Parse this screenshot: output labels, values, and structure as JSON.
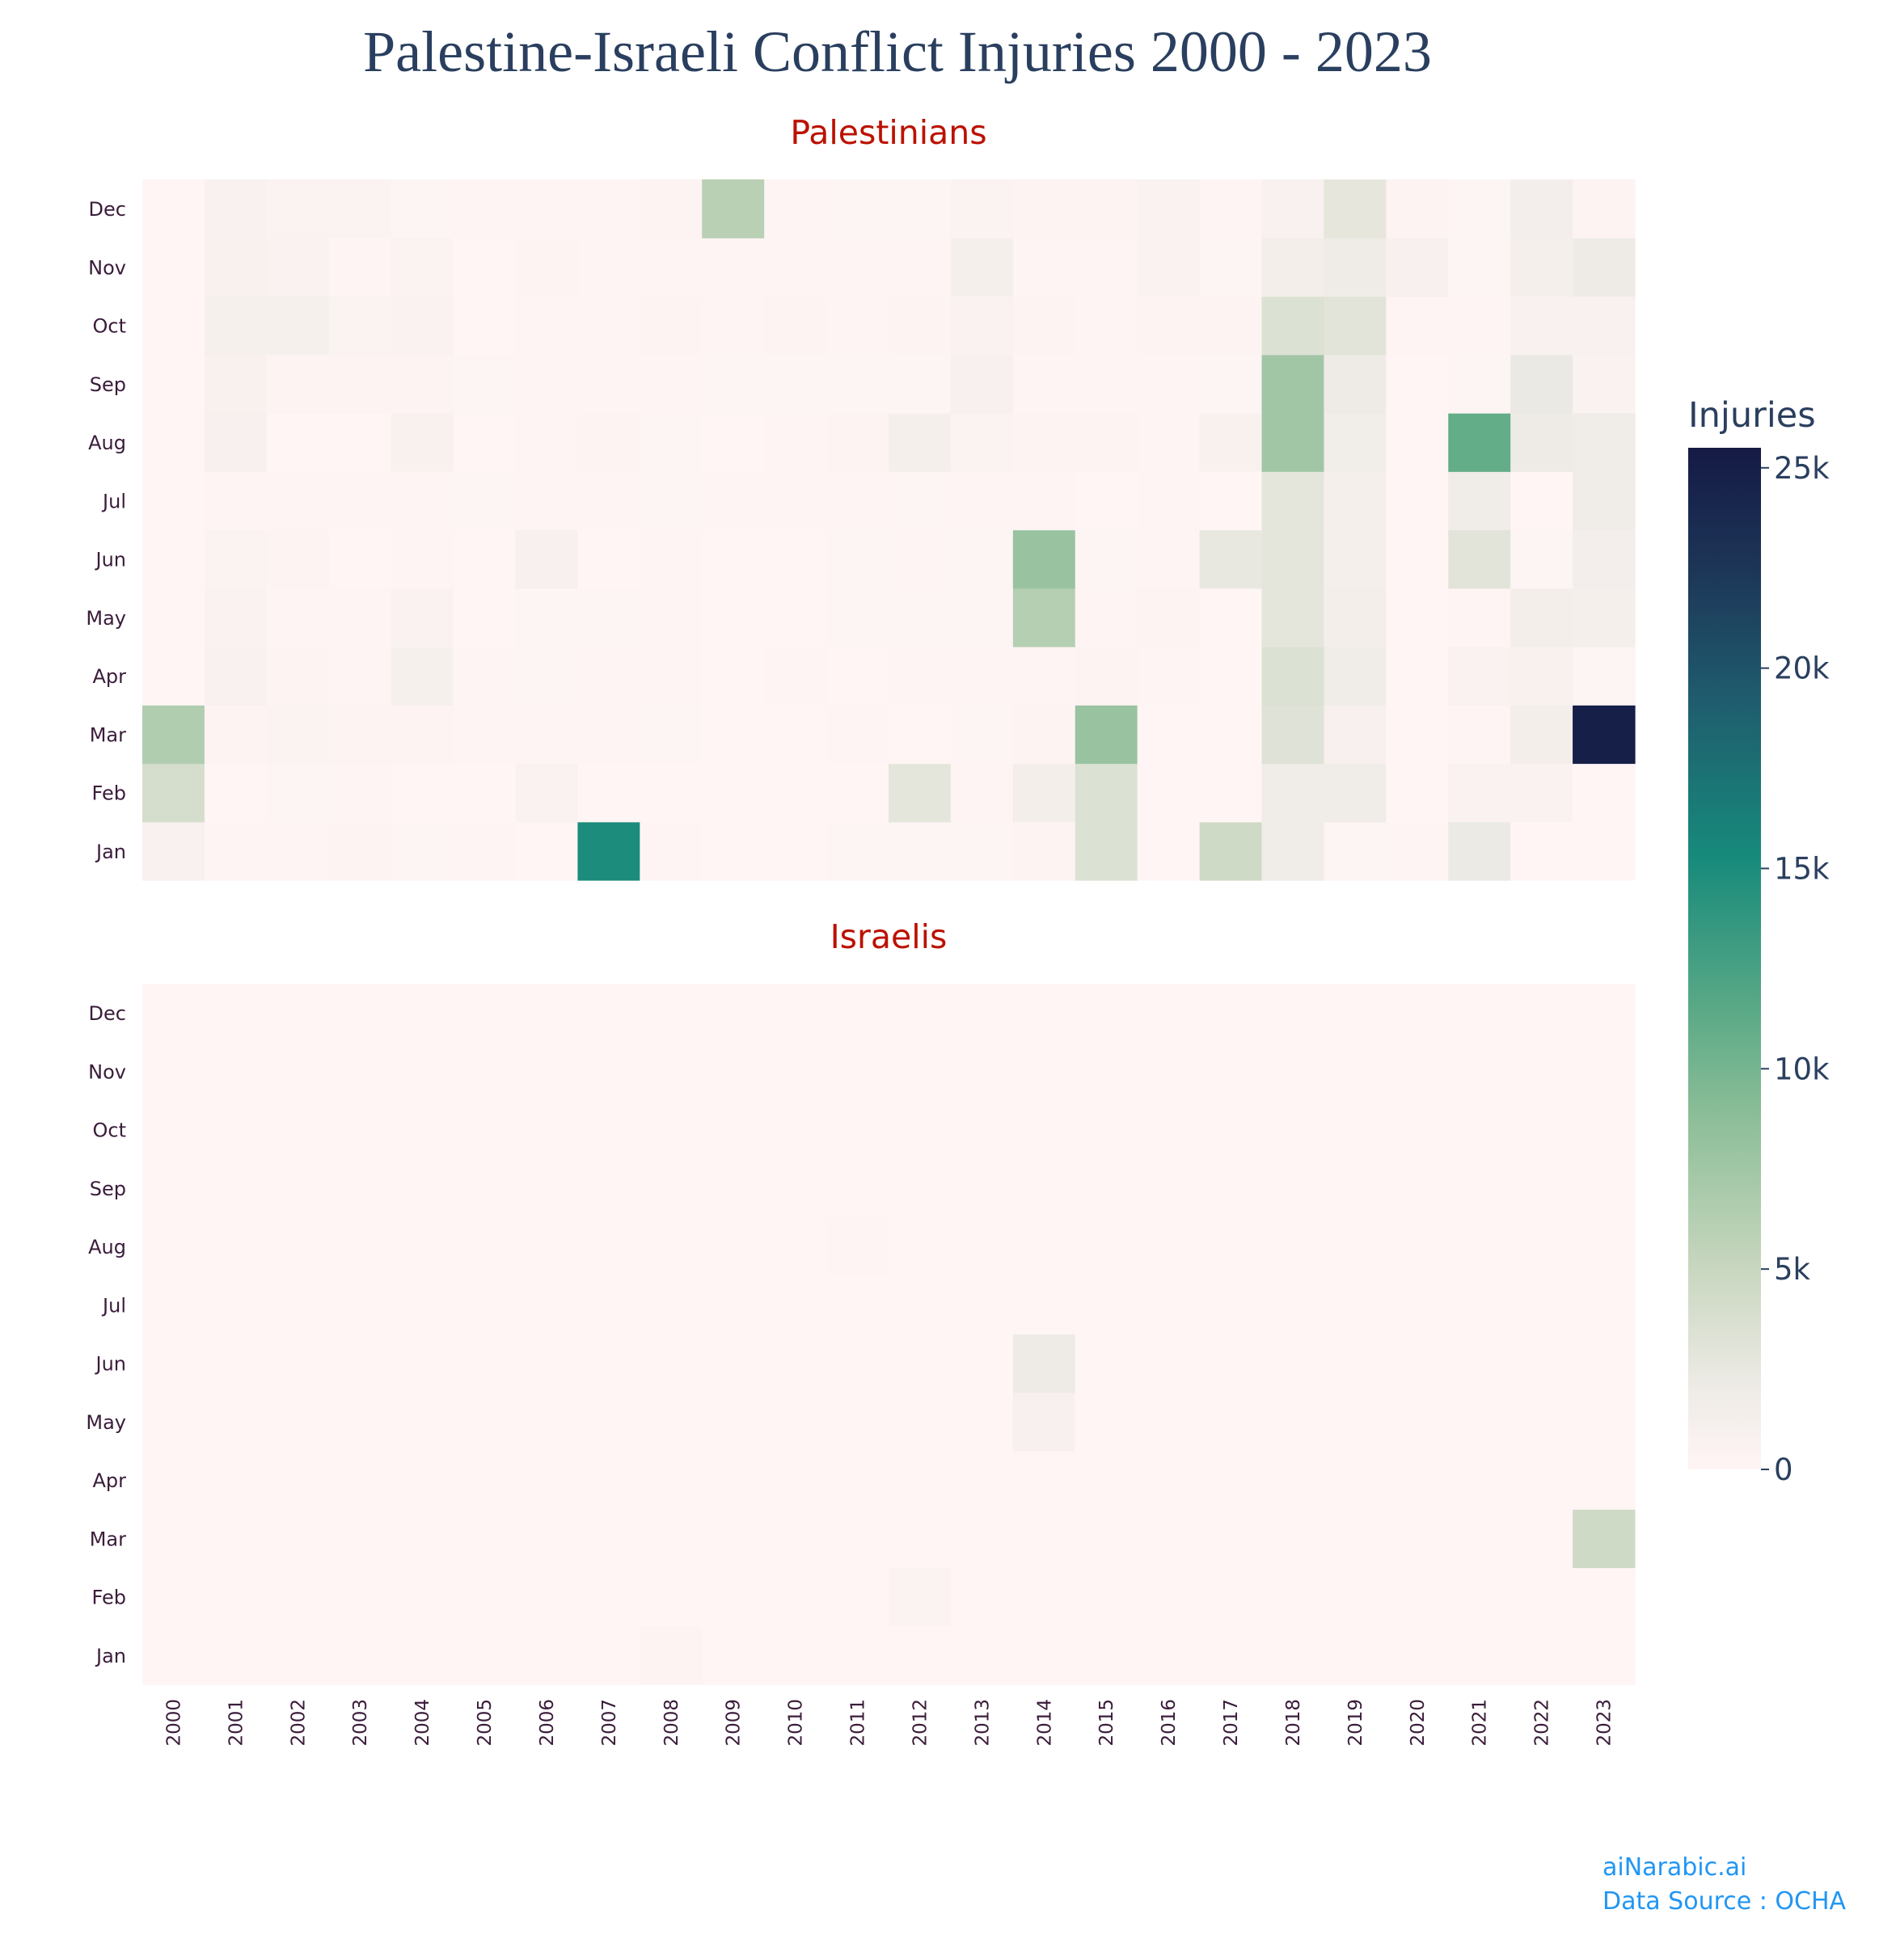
{
  "chart_data": {
    "type": "heatmap",
    "title": "Palestine-Israeli Conflict Injuries 2000 - 2023",
    "colorbar": {
      "title": "Injuries",
      "range": [
        0,
        25500
      ],
      "ticks": [
        0,
        5000,
        10000,
        15000,
        20000,
        25000
      ],
      "tick_labels": [
        "0",
        "5k",
        "10k",
        "15k",
        "20k",
        "25k"
      ],
      "colorscale": [
        [
          0.0,
          "#fff5f5"
        ],
        [
          0.08,
          "#eeebe6"
        ],
        [
          0.2,
          "#c7d6be"
        ],
        [
          0.35,
          "#8abd97"
        ],
        [
          0.45,
          "#5aa986"
        ],
        [
          0.6,
          "#178a7b"
        ],
        [
          0.75,
          "#1f5d6e"
        ],
        [
          0.88,
          "#1d3658"
        ],
        [
          1.0,
          "#151a44"
        ]
      ]
    },
    "x": [
      "2000",
      "2001",
      "2002",
      "2003",
      "2004",
      "2005",
      "2006",
      "2007",
      "2008",
      "2009",
      "2010",
      "2011",
      "2012",
      "2013",
      "2014",
      "2015",
      "2016",
      "2017",
      "2018",
      "2019",
      "2020",
      "2021",
      "2022",
      "2023"
    ],
    "y": [
      "Jan",
      "Feb",
      "Mar",
      "Apr",
      "May",
      "Jun",
      "Jul",
      "Aug",
      "Sep",
      "Oct",
      "Nov",
      "Dec"
    ],
    "panels": [
      {
        "name": "Palestinians",
        "z": [
          [
            800,
            300,
            250,
            400,
            200,
            150,
            100,
            15000,
            300,
            100,
            100,
            200,
            200,
            200,
            400,
            3500,
            50,
            4500,
            1800,
            200,
            250,
            2200,
            50,
            50
          ],
          [
            4000,
            100,
            200,
            150,
            80,
            100,
            700,
            100,
            100,
            100,
            100,
            100,
            2800,
            300,
            1500,
            3500,
            50,
            50,
            1800,
            1800,
            50,
            600,
            600,
            50
          ],
          [
            6500,
            400,
            500,
            400,
            400,
            150,
            300,
            150,
            200,
            100,
            100,
            150,
            100,
            200,
            400,
            8000,
            100,
            100,
            3200,
            1000,
            100,
            300,
            1500,
            25000
          ],
          [
            100,
            800,
            400,
            300,
            1100,
            150,
            200,
            150,
            150,
            100,
            150,
            100,
            150,
            300,
            300,
            400,
            250,
            100,
            3500,
            1800,
            50,
            700,
            900,
            200
          ],
          [
            100,
            600,
            300,
            300,
            600,
            100,
            200,
            200,
            150,
            100,
            100,
            200,
            200,
            200,
            6200,
            300,
            350,
            100,
            2800,
            1500,
            100,
            300,
            1500,
            1200
          ],
          [
            100,
            500,
            400,
            80,
            300,
            100,
            1000,
            100,
            300,
            100,
            100,
            200,
            250,
            200,
            8000,
            200,
            250,
            2500,
            2800,
            1300,
            100,
            3000,
            200,
            1400
          ],
          [
            100,
            250,
            250,
            250,
            250,
            200,
            250,
            250,
            200,
            150,
            150,
            150,
            200,
            150,
            300,
            100,
            150,
            100,
            2800,
            1200,
            100,
            1800,
            100,
            1800
          ],
          [
            100,
            1000,
            50,
            100,
            900,
            50,
            250,
            400,
            200,
            80,
            150,
            400,
            1200,
            450,
            350,
            400,
            300,
            900,
            7500,
            1700,
            100,
            11000,
            2000,
            1800
          ],
          [
            100,
            900,
            400,
            350,
            350,
            200,
            300,
            300,
            250,
            200,
            200,
            200,
            200,
            1000,
            300,
            250,
            300,
            200,
            7500,
            2000,
            100,
            200,
            2300,
            700
          ],
          [
            100,
            1100,
            1100,
            500,
            700,
            80,
            300,
            250,
            400,
            250,
            400,
            250,
            400,
            600,
            400,
            300,
            400,
            400,
            3500,
            3000,
            300,
            300,
            800,
            800
          ],
          [
            100,
            900,
            600,
            300,
            500,
            100,
            350,
            300,
            300,
            150,
            150,
            150,
            300,
            1200,
            300,
            300,
            600,
            200,
            1500,
            1900,
            1000,
            200,
            1200,
            2000
          ],
          [
            100,
            800,
            500,
            500,
            200,
            250,
            300,
            300,
            400,
            6000,
            150,
            200,
            200,
            500,
            400,
            400,
            700,
            150,
            800,
            2700,
            400,
            200,
            1400,
            400
          ]
        ]
      },
      {
        "name": "Israelis",
        "z": [
          [
            0,
            0,
            0,
            0,
            0,
            80,
            0,
            0,
            400,
            0,
            0,
            0,
            0,
            0,
            0,
            0,
            0,
            0,
            0,
            0,
            0,
            0,
            0,
            0
          ],
          [
            0,
            0,
            0,
            0,
            0,
            0,
            0,
            0,
            0,
            0,
            0,
            0,
            500,
            0,
            60,
            0,
            0,
            0,
            0,
            60,
            0,
            0,
            0,
            0
          ],
          [
            0,
            0,
            0,
            0,
            0,
            80,
            0,
            0,
            0,
            0,
            0,
            0,
            0,
            0,
            0,
            0,
            0,
            0,
            0,
            0,
            0,
            0,
            0,
            4500
          ],
          [
            0,
            0,
            0,
            0,
            0,
            0,
            0,
            0,
            0,
            0,
            0,
            0,
            0,
            0,
            0,
            0,
            0,
            0,
            0,
            0,
            0,
            0,
            0,
            0
          ],
          [
            0,
            0,
            0,
            0,
            0,
            0,
            0,
            40,
            0,
            0,
            0,
            0,
            0,
            0,
            1000,
            0,
            0,
            0,
            0,
            0,
            0,
            0,
            40,
            0
          ],
          [
            0,
            0,
            0,
            0,
            0,
            80,
            0,
            0,
            60,
            0,
            0,
            0,
            0,
            0,
            2000,
            0,
            0,
            0,
            0,
            0,
            0,
            0,
            0,
            0
          ],
          [
            0,
            0,
            0,
            0,
            0,
            0,
            0,
            0,
            0,
            0,
            0,
            0,
            0,
            0,
            0,
            0,
            0,
            0,
            0,
            0,
            0,
            0,
            0,
            0
          ],
          [
            0,
            0,
            0,
            0,
            0,
            0,
            0,
            0,
            0,
            0,
            0,
            250,
            0,
            0,
            0,
            0,
            0,
            0,
            0,
            0,
            0,
            60,
            0,
            60
          ],
          [
            0,
            0,
            0,
            0,
            0,
            0,
            0,
            0,
            0,
            0,
            0,
            0,
            0,
            0,
            0,
            0,
            0,
            0,
            0,
            0,
            0,
            0,
            0,
            0
          ],
          [
            0,
            0,
            0,
            0,
            0,
            0,
            40,
            0,
            60,
            60,
            100,
            0,
            0,
            0,
            0,
            0,
            0,
            0,
            0,
            0,
            0,
            0,
            0,
            0
          ],
          [
            0,
            0,
            0,
            0,
            0,
            60,
            0,
            60,
            50,
            0,
            0,
            0,
            0,
            0,
            0,
            0,
            0,
            0,
            0,
            0,
            0,
            0,
            0,
            0
          ],
          [
            0,
            0,
            0,
            0,
            0,
            0,
            0,
            0,
            0,
            0,
            0,
            0,
            0,
            0,
            0,
            0,
            0,
            0,
            0,
            0,
            0,
            0,
            0,
            0
          ]
        ]
      }
    ]
  },
  "footer": {
    "credit": "aiNarabic.ai",
    "source": "Data Source : OCHA"
  },
  "colors": {
    "title": "#2a3f5f",
    "subtitle": "#bb1100",
    "tick": "#3a1c3a",
    "footer": "#2196f3"
  }
}
